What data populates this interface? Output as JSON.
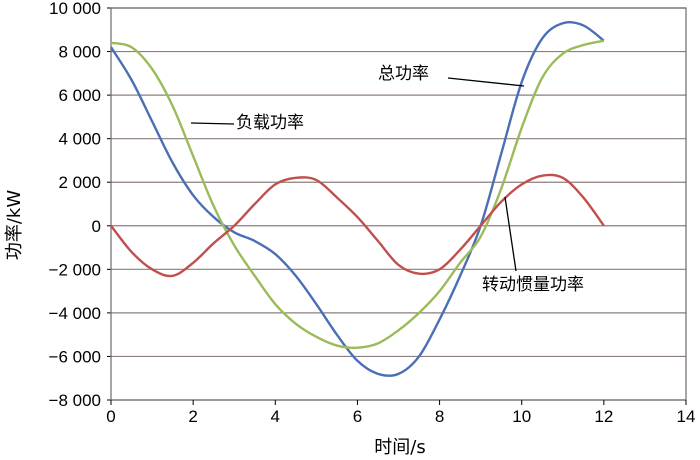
{
  "chart_data": {
    "type": "line",
    "title": "",
    "xlabel": "时间/s",
    "ylabel": "功率/kW",
    "xlim": [
      0,
      14
    ],
    "ylim": [
      -8000,
      10000
    ],
    "x_ticks": [
      0,
      2,
      4,
      6,
      8,
      10,
      12,
      14
    ],
    "y_ticks": [
      10000,
      8000,
      6000,
      4000,
      2000,
      0,
      -2000,
      -4000,
      -6000,
      -8000
    ],
    "x_tick_labels": [
      "0",
      "2",
      "4",
      "6",
      "8",
      "10",
      "12",
      "14"
    ],
    "y_tick_labels": [
      "10 000",
      "8 000",
      "6 000",
      "4 000",
      "2 000",
      "0",
      "−2 000",
      "−4 000",
      "−6 000",
      "−8 000"
    ],
    "grid": "horizontal",
    "series": [
      {
        "name": "总功率",
        "color": "#4a6fb5",
        "x": [
          0,
          0.5,
          1,
          1.5,
          2,
          2.5,
          3,
          3.5,
          4,
          4.5,
          5,
          5.5,
          6,
          6.5,
          7,
          7.5,
          8,
          8.5,
          9,
          9.5,
          10,
          10.5,
          11,
          11.5,
          12
        ],
        "y": [
          8200,
          6700,
          4800,
          2900,
          1400,
          400,
          -300,
          -700,
          -1300,
          -2300,
          -3600,
          -5000,
          -6200,
          -6800,
          -6800,
          -6000,
          -4300,
          -2300,
          0,
          3300,
          6600,
          8600,
          9300,
          9200,
          8500
        ]
      },
      {
        "name": "负载功率",
        "color": "#9bbb59",
        "x": [
          0,
          0.5,
          1,
          1.5,
          2,
          2.5,
          3,
          3.5,
          4,
          4.5,
          5,
          5.5,
          6,
          6.5,
          7,
          7.5,
          8,
          8.5,
          9,
          9.5,
          10,
          10.5,
          11,
          11.5,
          12
        ],
        "y": [
          8400,
          8200,
          7200,
          5500,
          3200,
          900,
          -900,
          -2300,
          -3600,
          -4500,
          -5100,
          -5500,
          -5600,
          -5400,
          -4800,
          -4000,
          -3000,
          -1700,
          -500,
          1700,
          4500,
          6800,
          7900,
          8300,
          8500
        ]
      },
      {
        "name": "转动惯量功率",
        "color": "#c0504d",
        "x": [
          0,
          0.5,
          1,
          1.5,
          2,
          2.5,
          3,
          3.5,
          4,
          4.5,
          5,
          5.5,
          6,
          6.5,
          7,
          7.5,
          8,
          8.5,
          9,
          9.5,
          10,
          10.5,
          11,
          11.5,
          12
        ],
        "y": [
          0,
          -1200,
          -2000,
          -2300,
          -1700,
          -800,
          0,
          1000,
          1900,
          2200,
          2100,
          1300,
          400,
          -700,
          -1800,
          -2200,
          -2000,
          -1100,
          0,
          1100,
          1900,
          2300,
          2200,
          1300,
          0
        ]
      }
    ],
    "annotations": [
      {
        "text": "总功率",
        "series": "总功率"
      },
      {
        "text": "负载功率",
        "series": "负载功率"
      },
      {
        "text": "转动惯量功率",
        "series": "转动惯量功率"
      }
    ]
  }
}
